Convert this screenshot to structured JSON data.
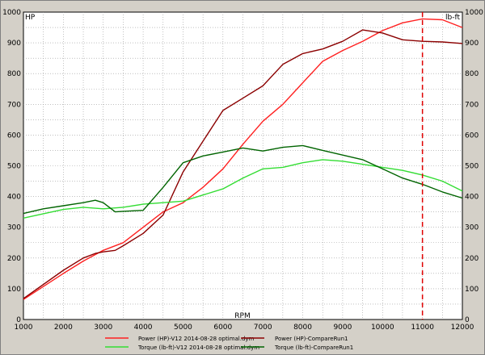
{
  "chart_data": {
    "type": "line",
    "left_axis_label": "HP",
    "right_axis_label": "lb-ft",
    "x_axis_label": "RPM",
    "xlim": [
      1000,
      12000
    ],
    "ylim": [
      0,
      1000
    ],
    "x_ticks": [
      1000,
      2000,
      3000,
      4000,
      5000,
      6000,
      7000,
      8000,
      9000,
      10000,
      11000,
      12000
    ],
    "y_ticks": [
      0,
      100,
      200,
      300,
      400,
      500,
      600,
      700,
      800,
      900,
      1000
    ],
    "grid": true,
    "marker_rpm": 11000,
    "marker_color": "#e00000",
    "series": [
      {
        "name": "Power (HP)-V12 2014-08-28 optimal.dym",
        "color": "#ff2020",
        "x": [
          1000,
          2000,
          2500,
          3000,
          3500,
          4000,
          4500,
          5000,
          5500,
          6000,
          6500,
          7000,
          7500,
          8000,
          8500,
          9000,
          9500,
          10000,
          10500,
          11000,
          11500,
          12000
        ],
        "y": [
          65,
          150,
          190,
          225,
          250,
          300,
          350,
          380,
          430,
          490,
          570,
          645,
          700,
          770,
          840,
          875,
          905,
          940,
          965,
          978,
          975,
          950
        ]
      },
      {
        "name": "Power (HP)-CompareRun1",
        "color": "#8b0000",
        "x": [
          1000,
          2000,
          2500,
          2800,
          3000,
          3300,
          3500,
          4000,
          4500,
          5000,
          5500,
          6000,
          6500,
          7000,
          7500,
          8000,
          8500,
          9000,
          9500,
          10000,
          10500,
          11000,
          11500,
          12000
        ],
        "y": [
          68,
          160,
          200,
          215,
          220,
          225,
          240,
          280,
          340,
          480,
          580,
          680,
          720,
          760,
          830,
          865,
          880,
          905,
          942,
          932,
          910,
          905,
          903,
          898
        ]
      },
      {
        "name": "Torque (lb-ft)-V12 2014-08-28 optimal.dym",
        "color": "#33dd33",
        "x": [
          1000,
          2000,
          2500,
          3000,
          3500,
          4000,
          4500,
          5000,
          5500,
          6000,
          6500,
          7000,
          7500,
          8000,
          8500,
          9000,
          9500,
          10000,
          10500,
          11000,
          11500,
          12000
        ],
        "y": [
          330,
          358,
          365,
          360,
          365,
          375,
          380,
          385,
          405,
          425,
          460,
          490,
          495,
          510,
          520,
          515,
          505,
          495,
          485,
          470,
          450,
          418
        ]
      },
      {
        "name": "Torque (lb-ft)-CompareRun1",
        "color": "#006400",
        "x": [
          1000,
          1500,
          2000,
          2500,
          2800,
          3000,
          3300,
          3500,
          4000,
          4500,
          5000,
          5500,
          6000,
          6500,
          7000,
          7500,
          8000,
          8500,
          9000,
          9500,
          10000,
          10500,
          11000,
          11500,
          12000
        ],
        "y": [
          345,
          360,
          370,
          380,
          388,
          380,
          350,
          352,
          355,
          430,
          510,
          532,
          545,
          558,
          548,
          560,
          566,
          550,
          535,
          520,
          490,
          460,
          440,
          415,
          395
        ]
      }
    ]
  }
}
